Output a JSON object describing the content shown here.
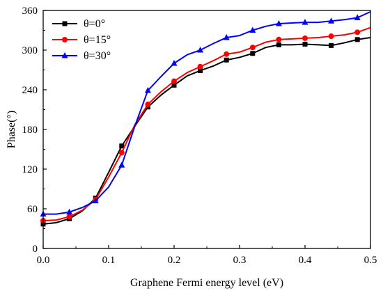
{
  "chart_data": {
    "type": "line",
    "title": "",
    "xlabel": "Graphene Fermi energy level (eV)",
    "ylabel": "Phase(°)",
    "xlim": [
      0.0,
      0.5
    ],
    "ylim": [
      0,
      360
    ],
    "xticks": [
      "0.0",
      "0.1",
      "0.2",
      "0.3",
      "0.4",
      "0.5"
    ],
    "yticks": [
      "0",
      "60",
      "120",
      "180",
      "240",
      "300",
      "360"
    ],
    "grid": false,
    "legend_position": "top-left",
    "series": [
      {
        "name": "θ=0°",
        "color": "#000000",
        "marker": "square",
        "x": [
          0.0,
          0.02,
          0.04,
          0.06,
          0.08,
          0.1,
          0.12,
          0.14,
          0.16,
          0.18,
          0.2,
          0.22,
          0.24,
          0.26,
          0.28,
          0.3,
          0.32,
          0.34,
          0.36,
          0.38,
          0.4,
          0.42,
          0.44,
          0.46,
          0.48,
          0.5
        ],
        "y": [
          37,
          39,
          45,
          57,
          76,
          115,
          155,
          185,
          214,
          232,
          247,
          261,
          269,
          276,
          285,
          289,
          295,
          304,
          308,
          308,
          309,
          308,
          307,
          311,
          316,
          319
        ],
        "marker_indices": [
          0,
          2,
          4,
          6,
          8,
          10,
          12,
          14,
          16,
          18,
          20,
          22,
          24
        ]
      },
      {
        "name": "θ=15°",
        "color": "#ff0000",
        "marker": "circle",
        "x": [
          0.0,
          0.02,
          0.04,
          0.06,
          0.08,
          0.1,
          0.12,
          0.14,
          0.16,
          0.18,
          0.2,
          0.22,
          0.24,
          0.26,
          0.28,
          0.3,
          0.32,
          0.34,
          0.36,
          0.38,
          0.4,
          0.42,
          0.44,
          0.46,
          0.48,
          0.5
        ],
        "y": [
          42,
          43,
          48,
          58,
          74,
          108,
          145,
          187,
          218,
          237,
          253,
          266,
          275,
          284,
          294,
          297,
          304,
          312,
          316,
          317,
          318,
          319,
          321,
          323,
          327,
          334
        ],
        "marker_indices": [
          0,
          2,
          4,
          6,
          8,
          10,
          12,
          14,
          16,
          18,
          20,
          22,
          24
        ]
      },
      {
        "name": "θ=30°",
        "color": "#0000ff",
        "marker": "triangle",
        "x": [
          0.0,
          0.02,
          0.04,
          0.06,
          0.08,
          0.1,
          0.12,
          0.14,
          0.16,
          0.18,
          0.2,
          0.22,
          0.24,
          0.26,
          0.28,
          0.3,
          0.32,
          0.34,
          0.36,
          0.38,
          0.4,
          0.42,
          0.44,
          0.46,
          0.48,
          0.5
        ],
        "y": [
          52,
          52,
          55,
          62,
          72,
          93,
          126,
          185,
          239,
          260,
          280,
          293,
          300,
          310,
          319,
          322,
          330,
          336,
          340,
          341,
          342,
          342,
          344,
          346,
          349,
          358
        ],
        "marker_indices": [
          0,
          2,
          4,
          6,
          8,
          10,
          12,
          14,
          16,
          18,
          20,
          22,
          24
        ]
      }
    ]
  }
}
